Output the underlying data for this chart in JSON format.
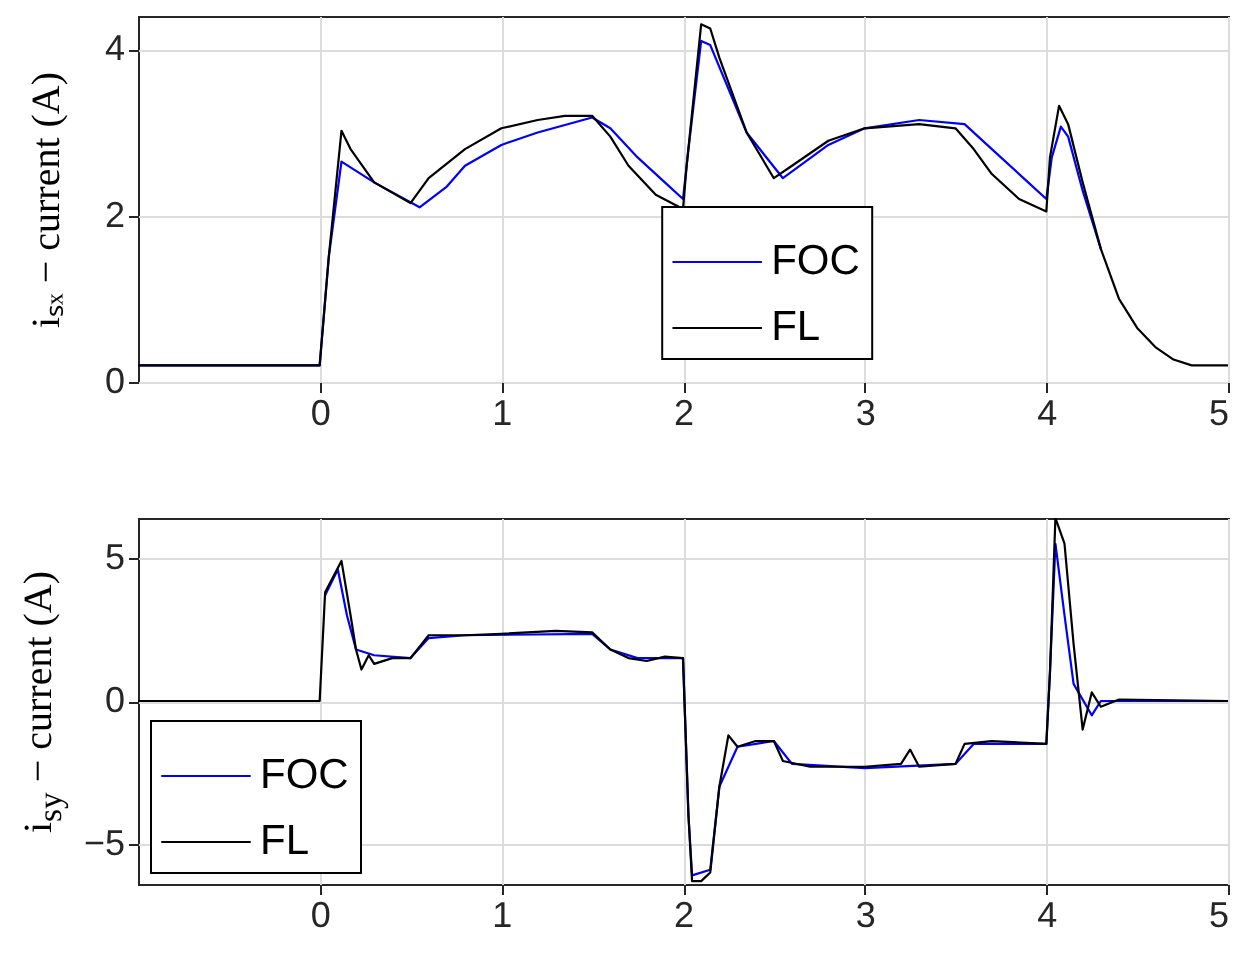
{
  "chart_data": [
    {
      "type": "line",
      "ylabel": "iₛₓ − current (A)",
      "xlim": [
        -1,
        5
      ],
      "xticks": [
        0,
        1,
        2,
        3,
        4,
        5
      ],
      "ylim": [
        0,
        4.4
      ],
      "yticks": [
        0,
        2,
        4
      ],
      "grid": true,
      "legend": "bottom",
      "series": [
        {
          "name": "FOC",
          "color": "#0000ff",
          "x": [
            -1,
            0,
            0.05,
            0.12,
            0.3,
            0.55,
            0.7,
            0.8,
            1.0,
            1.2,
            1.5,
            1.6,
            1.75,
            1.9,
            2.0,
            2.03,
            2.1,
            2.15,
            2.35,
            2.55,
            2.8,
            3.0,
            3.3,
            3.55,
            3.7,
            3.9,
            4.0,
            4.03,
            4.08,
            4.12,
            4.2,
            4.3
          ],
          "values": [
            0.2,
            0.2,
            1.5,
            2.65,
            2.4,
            2.1,
            2.35,
            2.6,
            2.85,
            3.0,
            3.18,
            3.05,
            2.7,
            2.4,
            2.2,
            2.8,
            4.1,
            4.05,
            3.0,
            2.45,
            2.85,
            3.05,
            3.15,
            3.1,
            2.8,
            2.4,
            2.2,
            2.7,
            3.07,
            2.95,
            2.3,
            1.6
          ]
        },
        {
          "name": "FL",
          "color": "#000000",
          "x": [
            -1,
            0,
            0.05,
            0.12,
            0.17,
            0.3,
            0.5,
            0.6,
            0.8,
            1.0,
            1.2,
            1.35,
            1.5,
            1.6,
            1.7,
            1.85,
            2.0,
            2.02,
            2.1,
            2.15,
            2.2,
            2.35,
            2.5,
            2.6,
            2.8,
            3.0,
            3.3,
            3.5,
            3.6,
            3.7,
            3.85,
            4.0,
            4.02,
            4.07,
            4.12,
            4.2,
            4.3,
            4.4,
            4.5,
            4.6,
            4.7,
            4.8,
            5
          ],
          "values": [
            0.2,
            0.2,
            1.5,
            3.02,
            2.8,
            2.4,
            2.15,
            2.45,
            2.8,
            3.05,
            3.15,
            3.2,
            3.2,
            2.95,
            2.6,
            2.25,
            2.08,
            2.6,
            4.3,
            4.25,
            3.9,
            3.0,
            2.45,
            2.6,
            2.9,
            3.05,
            3.1,
            3.05,
            2.8,
            2.5,
            2.2,
            2.05,
            2.7,
            3.32,
            3.1,
            2.4,
            1.6,
            1.0,
            0.65,
            0.42,
            0.27,
            0.2,
            0.2
          ]
        }
      ]
    },
    {
      "type": "line",
      "ylabel": "i$_{sy}$ − current (A)",
      "xlim": [
        -1,
        5
      ],
      "xticks": [
        0,
        1,
        2,
        3,
        4,
        5
      ],
      "ylim": [
        -6.4,
        6.4
      ],
      "yticks": [
        -5,
        0,
        5
      ],
      "grid": true,
      "legend": "bottom left",
      "series": [
        {
          "name": "FOC",
          "color": "#0000ff",
          "x": [
            0.03,
            0.1,
            0.15,
            0.2,
            0.3,
            0.5,
            0.6,
            0.8,
            1.5,
            1.6,
            1.75,
            2.0,
            2.03,
            2.05,
            2.15,
            2.2,
            2.3,
            2.5,
            2.6,
            3.0,
            3.5,
            3.6,
            4.0,
            4.02,
            4.05,
            4.1,
            4.15,
            4.25,
            4.3,
            5
          ],
          "values": [
            3.7,
            4.6,
            3.0,
            1.8,
            1.6,
            1.5,
            2.2,
            2.3,
            2.35,
            1.8,
            1.5,
            1.5,
            -4,
            -6.1,
            -5.9,
            -3.0,
            -1.6,
            -1.4,
            -2.2,
            -2.35,
            -2.2,
            -1.5,
            -1.5,
            1,
            5.5,
            3,
            0.6,
            -0.5,
            0,
            0
          ]
        },
        {
          "name": "FL",
          "color": "#000000",
          "x": [
            -1,
            0,
            0.03,
            0.12,
            0.17,
            0.2,
            0.23,
            0.27,
            0.3,
            0.4,
            0.5,
            0.6,
            0.8,
            1.0,
            1.3,
            1.5,
            1.6,
            1.7,
            1.8,
            1.9,
            2.0,
            2.03,
            2.05,
            2.1,
            2.15,
            2.2,
            2.25,
            2.3,
            2.4,
            2.5,
            2.55,
            2.7,
            3.0,
            3.2,
            3.25,
            3.3,
            3.5,
            3.55,
            3.7,
            4.0,
            4.02,
            4.05,
            4.1,
            4.15,
            4.2,
            4.25,
            4.3,
            4.4,
            5
          ],
          "values": [
            0,
            0,
            3.8,
            4.9,
            3.0,
            1.8,
            1.1,
            1.6,
            1.3,
            1.5,
            1.5,
            2.3,
            2.3,
            2.35,
            2.45,
            2.4,
            1.8,
            1.5,
            1.4,
            1.55,
            1.5,
            -4,
            -6.3,
            -6.3,
            -6.0,
            -3,
            -1.2,
            -1.6,
            -1.4,
            -1.4,
            -2.1,
            -2.3,
            -2.3,
            -2.2,
            -1.7,
            -2.3,
            -2.2,
            -1.5,
            -1.4,
            -1.5,
            1,
            6.4,
            5.5,
            2,
            -1.0,
            0.3,
            -0.2,
            0.05,
            0
          ]
        }
      ]
    }
  ]
}
